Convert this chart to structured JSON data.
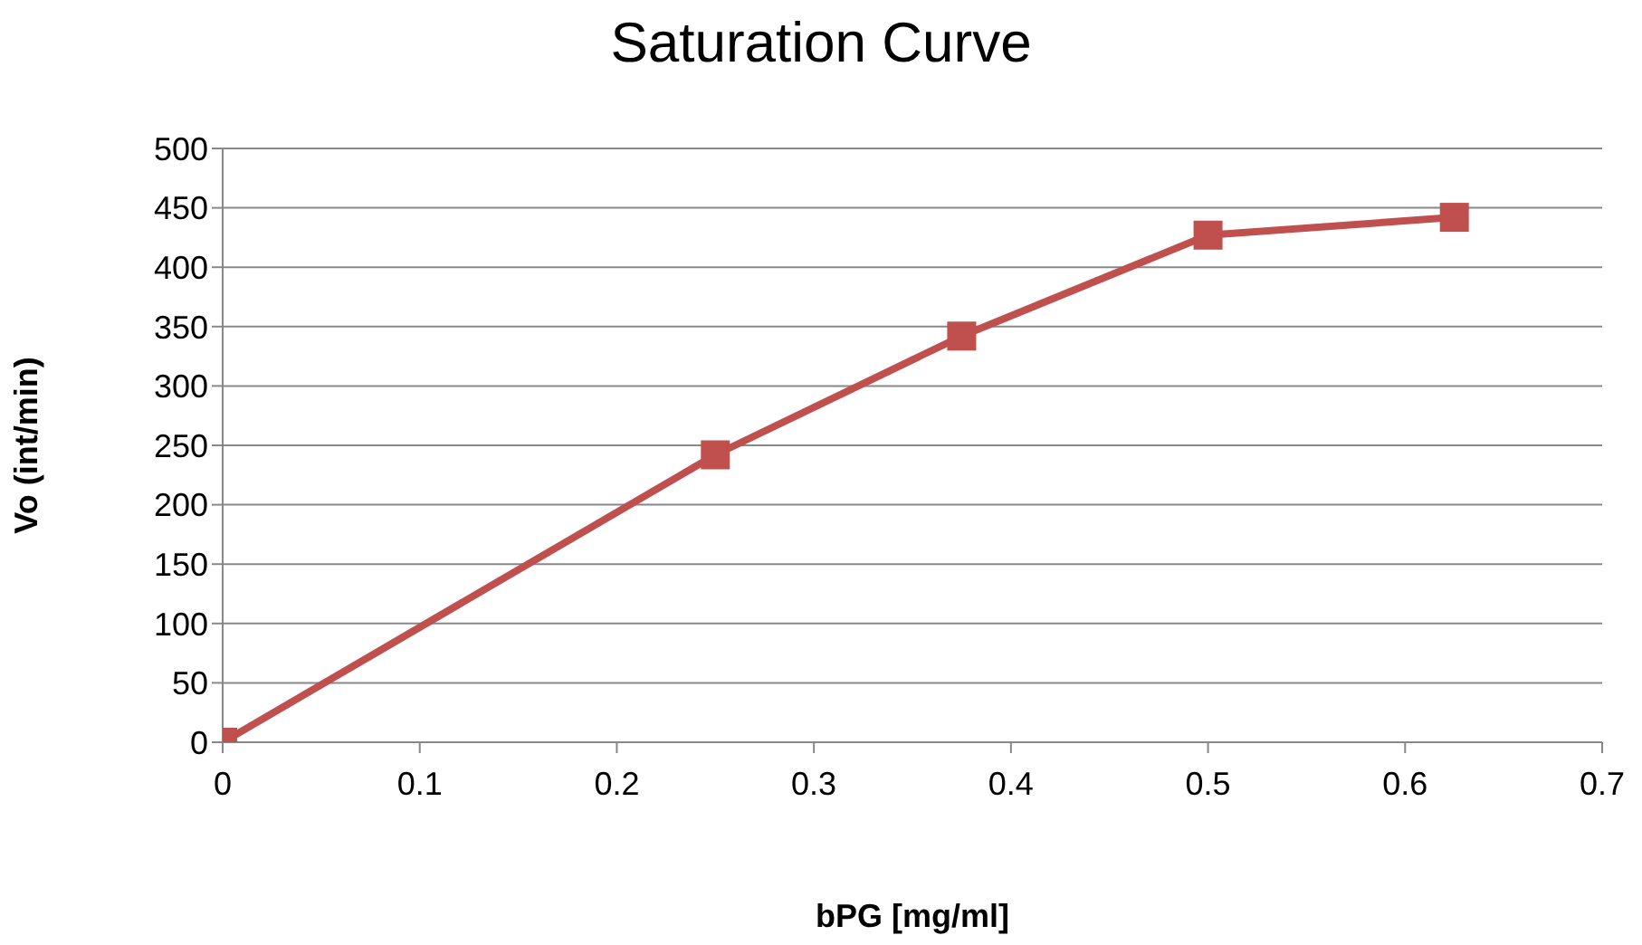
{
  "chart_data": {
    "type": "line",
    "title": "Saturation Curve",
    "xlabel": "bPG [mg/ml]",
    "ylabel": "Vo (int/min)",
    "x": [
      0,
      0.25,
      0.375,
      0.5,
      0.625
    ],
    "series": [
      {
        "color": "#c0504d",
        "values": [
          0,
          242,
          342,
          427,
          442
        ]
      }
    ],
    "xlim": [
      0,
      0.7
    ],
    "xticks": [
      0,
      0.1,
      0.2,
      0.3,
      0.4,
      0.5,
      0.6,
      0.7
    ],
    "ylim": [
      0,
      500
    ],
    "yticks": [
      0,
      50,
      100,
      150,
      200,
      250,
      300,
      350,
      400,
      450,
      500
    ],
    "grid": "y",
    "legend": false,
    "marker": "square",
    "line_style": "solid"
  }
}
